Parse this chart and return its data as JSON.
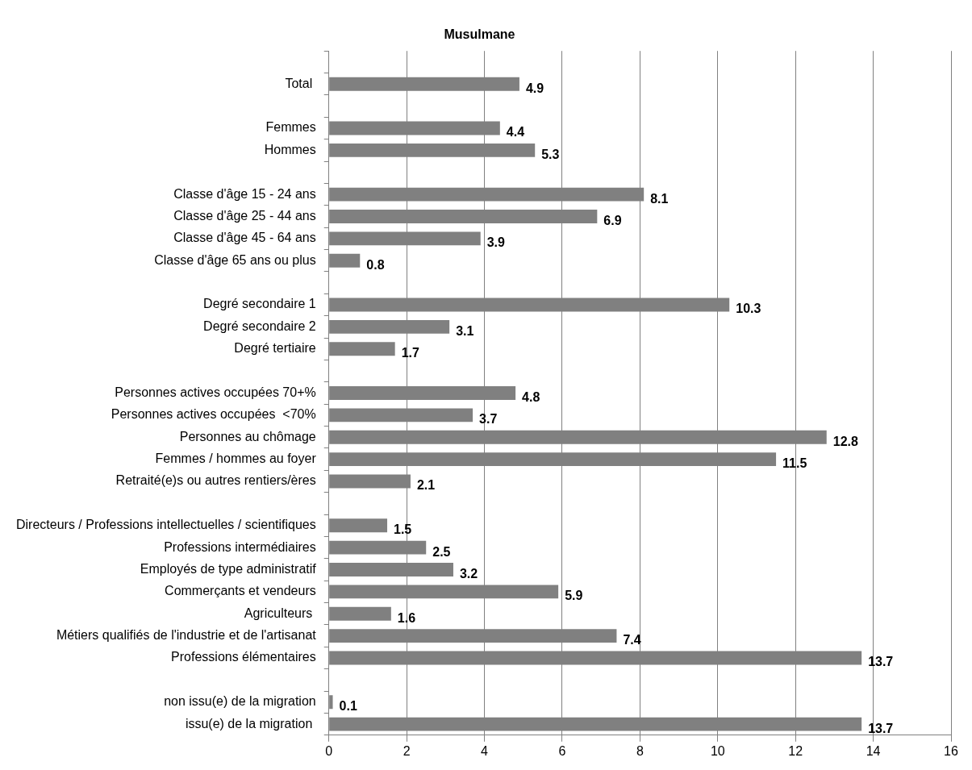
{
  "chart_data": {
    "type": "bar",
    "orientation": "horizontal",
    "title": "Musulmane",
    "categories": [
      null,
      "Total ",
      null,
      "Femmes",
      "Hommes",
      null,
      "Classe d'âge 15 - 24 ans",
      "Classe d'âge 25 - 44 ans",
      "Classe d'âge 45 - 64 ans",
      "Classe d'âge 65 ans ou plus",
      null,
      "Degré secondaire 1",
      "Degré secondaire 2",
      "Degré tertiaire",
      null,
      "Personnes actives occupées 70+%",
      "Personnes actives occupées  <70%",
      "Personnes au chômage",
      "Femmes / hommes au foyer",
      "Retraité(e)s ou autres rentiers/ères",
      null,
      "Directeurs / Professions intellectuelles / scientifiques",
      "Professions intermédiaires",
      "Employés de type administratif",
      "Commerçants et vendeurs",
      "Agriculteurs ",
      "Métiers qualifiés de l'industrie et de l'artisanat",
      "Professions élémentaires",
      null,
      "non issu(e) de la migration",
      "issu(e) de la migration "
    ],
    "values": [
      null,
      4.9,
      null,
      4.4,
      5.3,
      null,
      8.1,
      6.9,
      3.9,
      0.8,
      null,
      10.3,
      3.1,
      1.7,
      null,
      4.8,
      3.7,
      12.8,
      11.5,
      2.1,
      null,
      1.5,
      2.5,
      3.2,
      5.9,
      1.6,
      7.4,
      13.7,
      null,
      0.1,
      13.7
    ],
    "color": "#808080",
    "xlim": [
      0,
      16
    ],
    "xticks": [
      0,
      2,
      4,
      6,
      8,
      10,
      12,
      14,
      16
    ],
    "grid": "x",
    "data_labels": true
  }
}
